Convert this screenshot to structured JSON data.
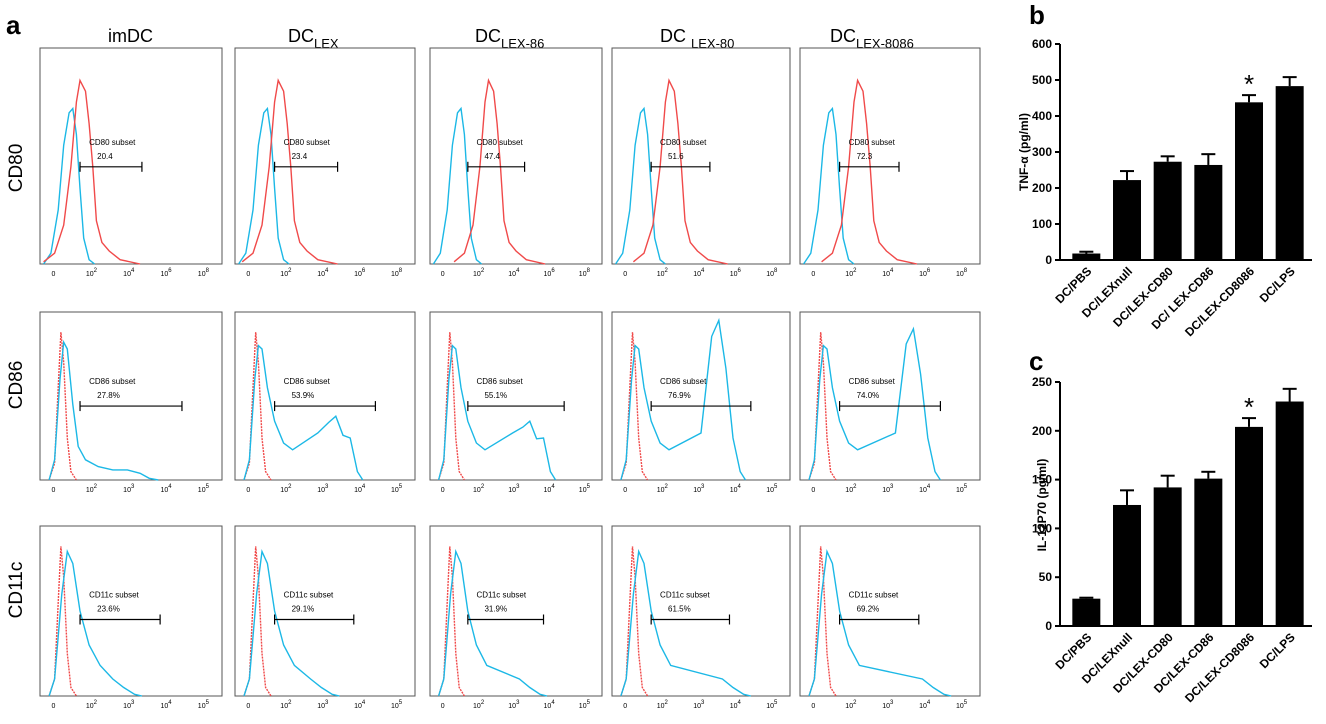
{
  "panels": {
    "a": "a",
    "b": "b",
    "c": "c"
  },
  "columns": [
    {
      "main": "imDC",
      "sub": ""
    },
    {
      "main": "DC",
      "sub": "LEX"
    },
    {
      "main": "DC",
      "sub": "LEX-86"
    },
    {
      "main": "DC ",
      "sub": "LEX-80"
    },
    {
      "main": "DC",
      "sub": "LEX-8086"
    }
  ],
  "rows": [
    "CD80",
    "CD86",
    "CD11c"
  ],
  "flow": {
    "row1_ticks": [
      "0",
      "2",
      "4",
      "6",
      "8"
    ],
    "row23_ticks": [
      "0",
      "2",
      "3",
      "4",
      "5"
    ],
    "row1_subset_label": "CD80 subset",
    "row2_subset_label": "CD86 subset",
    "row3_subset_label": "CD11c subset",
    "values": [
      [
        "20.4",
        "23.4",
        "47.4",
        "51.6",
        "72.3"
      ],
      [
        "27.8%",
        "53.9%",
        "55.1%",
        "76.9%",
        "74.0%"
      ],
      [
        "23.6%",
        "29.1%",
        "31.9%",
        "61.5%",
        "69.2%"
      ]
    ],
    "colors": {
      "control": "#f04a4a",
      "stained": "#1cb8e6"
    }
  },
  "chart_data": [
    {
      "type": "bar",
      "panel": "b",
      "ylabel": "TNF-α (pg/ml)",
      "ylim": [
        0,
        600
      ],
      "yticks": [
        0,
        100,
        200,
        300,
        400,
        500,
        600
      ],
      "categories": [
        "DC/PBS",
        "DC/LEXnull",
        "DC/LEX-CD80",
        "DC/ LEX-CD86",
        "DC/LEX-CD8086",
        "DC/LPS"
      ],
      "values": [
        18,
        222,
        273,
        264,
        438,
        483
      ],
      "errors": [
        5,
        25,
        15,
        30,
        20,
        25
      ],
      "annotations": [
        {
          "category": "DC/LEX-CD8086",
          "text": "*"
        }
      ]
    },
    {
      "type": "bar",
      "panel": "c",
      "ylabel": "IL-12P70 (pg/ml)",
      "ylim": [
        0,
        250
      ],
      "yticks": [
        0,
        50,
        100,
        150,
        200,
        250
      ],
      "categories": [
        "DC/PBS",
        "DC/LEXnull",
        "DC/LEX-CD80",
        "DC/LEX-CD86",
        "DC/LEX-CD8086",
        "DC/LPS"
      ],
      "values": [
        28,
        124,
        142,
        151,
        204,
        230
      ],
      "errors": [
        1,
        15,
        12,
        7,
        9,
        13
      ],
      "annotations": [
        {
          "category": "DC/LEX-CD8086",
          "text": "*"
        }
      ]
    }
  ]
}
